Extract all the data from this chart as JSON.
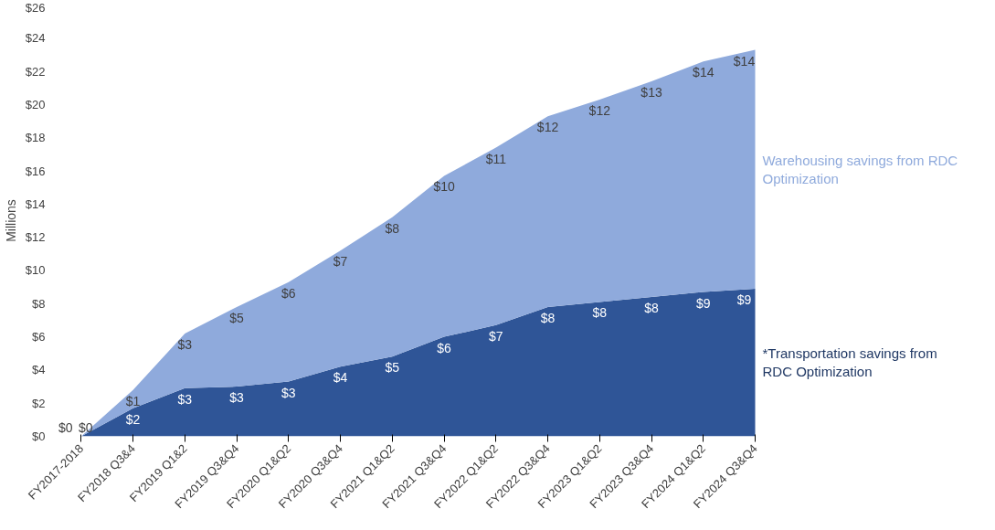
{
  "chart_data": {
    "type": "area",
    "stacked": true,
    "ylabel": "Millions",
    "categories": [
      "FY2017-2018",
      "FY2018 Q3&4",
      "FY2019 Q1&2",
      "FY2019 Q3&Q4",
      "FY2020 Q1&Q2",
      "FY2020 Q3&Q4",
      "FY2021 Q1&Q2",
      "FY2021 Q3&Q4",
      "FY2022 Q1&Q2",
      "FY2022 Q3&Q4",
      "FY2023 Q1&Q2",
      "FY2023 Q3&Q4",
      "FY2024 Q1&Q2",
      "FY2024 Q3&Q4"
    ],
    "series": [
      {
        "name": "*Transportation savings from RDC Optimization",
        "color": "#2f5597",
        "values": [
          0,
          1.7,
          2.9,
          3.0,
          3.3,
          4.2,
          4.8,
          6.0,
          6.7,
          7.8,
          8.1,
          8.4,
          8.7,
          8.9
        ],
        "value_labels": [
          "$0",
          "$2",
          "$3",
          "$3",
          "$3",
          "$4",
          "$5",
          "$6",
          "$7",
          "$8",
          "$8",
          "$8",
          "$9",
          "$9"
        ]
      },
      {
        "name": "Warehousing savings from RDC Optimization",
        "color": "#8faadc",
        "values": [
          0,
          1.1,
          3.3,
          4.8,
          6.0,
          7.0,
          8.4,
          9.7,
          10.7,
          11.5,
          12.2,
          13.0,
          13.9,
          14.4
        ],
        "value_labels": [
          "$0",
          "$1",
          "$3",
          "$5",
          "$6",
          "$7",
          "$8",
          "$10",
          "$11",
          "$12",
          "$12",
          "$13",
          "$14",
          "$14"
        ]
      }
    ],
    "ylim": [
      0,
      26
    ],
    "yticks": [
      {
        "value": 0,
        "label": "$0"
      },
      {
        "value": 2,
        "label": "$2"
      },
      {
        "value": 4,
        "label": "$4"
      },
      {
        "value": 6,
        "label": "$6"
      },
      {
        "value": 8,
        "label": "$8"
      },
      {
        "value": 10,
        "label": "$10"
      },
      {
        "value": 12,
        "label": "$12"
      },
      {
        "value": 14,
        "label": "$14"
      },
      {
        "value": 16,
        "label": "$16"
      },
      {
        "value": 18,
        "label": "$18"
      },
      {
        "value": 20,
        "label": "$20"
      },
      {
        "value": 22,
        "label": "$22"
      },
      {
        "value": 24,
        "label": "$24"
      },
      {
        "value": 26,
        "label": "$26"
      }
    ],
    "grid": false
  }
}
